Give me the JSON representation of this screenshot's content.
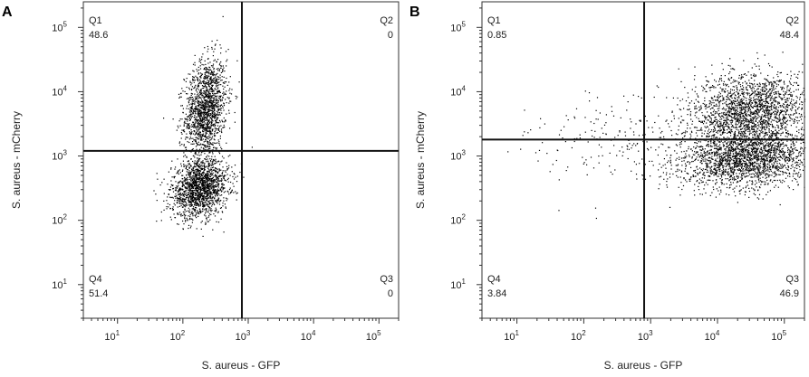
{
  "chart_data": [
    {
      "type": "scatter",
      "panel": "A",
      "xlabel": "S. aureus - GFP",
      "ylabel": "S. aureus - mCherry",
      "x_scale": "log",
      "y_scale": "log",
      "xlim": [
        3,
        200000
      ],
      "ylim": [
        3,
        250000
      ],
      "x_ticks": [
        "10^1",
        "10^2",
        "10^3",
        "10^4",
        "10^5"
      ],
      "y_ticks": [
        "10^1",
        "10^2",
        "10^3",
        "10^4",
        "10^5"
      ],
      "gate_x": 800,
      "gate_y": 1200,
      "quadrants": [
        {
          "name": "Q1",
          "value": "48.6"
        },
        {
          "name": "Q2",
          "value": "0"
        },
        {
          "name": "Q3",
          "value": "0"
        },
        {
          "name": "Q4",
          "value": "51.4"
        }
      ],
      "populations": [
        {
          "center": [
            220,
            5500
          ],
          "spread": [
            0.16,
            0.38
          ],
          "tilt": 0.5,
          "fraction": 0.486
        },
        {
          "center": [
            180,
            320
          ],
          "spread": [
            0.22,
            0.22
          ],
          "tilt": 0.2,
          "fraction": 0.514
        }
      ],
      "point_count": 3200,
      "grid": false
    },
    {
      "type": "scatter",
      "panel": "B",
      "xlabel": "S. aureus - GFP",
      "ylabel": "S. aureus - mCherry",
      "x_scale": "log",
      "y_scale": "log",
      "xlim": [
        3,
        200000
      ],
      "ylim": [
        3,
        250000
      ],
      "x_ticks": [
        "10^1",
        "10^2",
        "10^3",
        "10^4",
        "10^5"
      ],
      "y_ticks": [
        "10^1",
        "10^2",
        "10^3",
        "10^4",
        "10^5"
      ],
      "gate_x": 800,
      "gate_y": 1800,
      "quadrants": [
        {
          "name": "Q1",
          "value": "0.85"
        },
        {
          "name": "Q2",
          "value": "48.4"
        },
        {
          "name": "Q3",
          "value": "46.9"
        },
        {
          "name": "Q4",
          "value": "3.84"
        }
      ],
      "populations": [
        {
          "center": [
            30000,
            5000
          ],
          "spread": [
            0.45,
            0.3
          ],
          "tilt": 0.1,
          "fraction": 0.484
        },
        {
          "center": [
            25000,
            900
          ],
          "spread": [
            0.5,
            0.22
          ],
          "tilt": 0.05,
          "fraction": 0.469
        },
        {
          "center": [
            300,
            1500
          ],
          "spread": [
            0.7,
            0.35
          ],
          "tilt": 0.0,
          "fraction": 0.047
        }
      ],
      "point_count": 4200,
      "grid": false
    }
  ]
}
